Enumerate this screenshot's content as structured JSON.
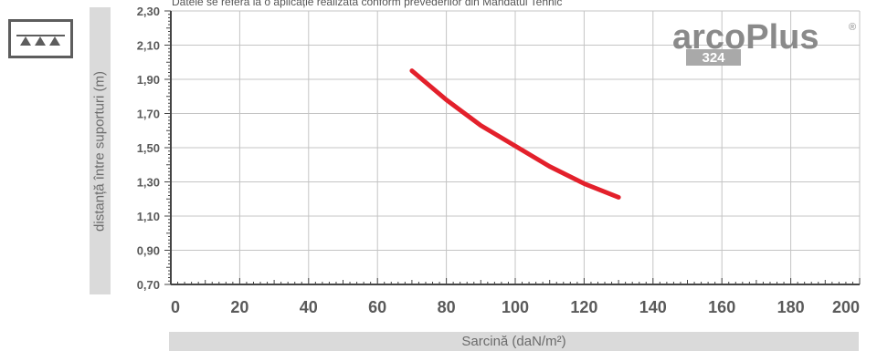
{
  "note": "Datele se referă la o aplicație realizată conform prevederilor din Mandatul Tehnic",
  "logo": {
    "name": "arcoPlus",
    "registered": "®",
    "number": "324",
    "color": "#8a8a8a"
  },
  "icon": "snow-load-icon",
  "chart_data": {
    "type": "line",
    "xlabel": "Sarcină (daN/m²)",
    "ylabel": "distanță între suporturi (m)",
    "xlim": [
      0,
      200
    ],
    "ylim": [
      0.7,
      2.3
    ],
    "xticks": [
      "0",
      "20",
      "40",
      "60",
      "80",
      "100",
      "120",
      "140",
      "160",
      "180",
      "200"
    ],
    "yticks": [
      "0,70",
      "0,90",
      "1,10",
      "1,30",
      "1,50",
      "1,70",
      "1,90",
      "2,10",
      "2,30"
    ],
    "grid": true,
    "series": [
      {
        "color": "#e3202b",
        "x": [
          70,
          80,
          90,
          100,
          110,
          120,
          130
        ],
        "y": [
          1.95,
          1.78,
          1.63,
          1.51,
          1.39,
          1.29,
          1.21
        ]
      }
    ]
  }
}
